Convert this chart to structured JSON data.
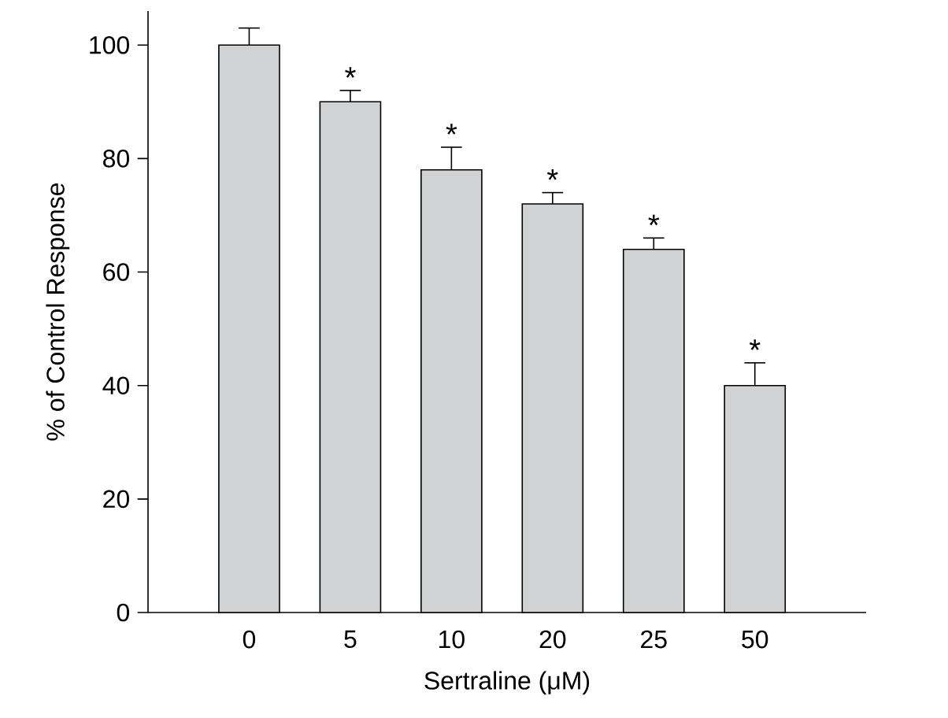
{
  "chart_data": {
    "type": "bar",
    "xlabel": "Sertraline (μM)",
    "ylabel": "% of Control Response",
    "categories": [
      "0",
      "5",
      "10",
      "20",
      "25",
      "50"
    ],
    "values": [
      100,
      90,
      78,
      72,
      64,
      40
    ],
    "errors": [
      3,
      2,
      4,
      2,
      2,
      4
    ],
    "value_labels": [
      null,
      "*",
      "*",
      "*",
      "*",
      "*"
    ],
    "color": "#d1d2d4",
    "ylim": [
      0,
      106
    ],
    "yticks": [
      0,
      20,
      40,
      60,
      80,
      100
    ],
    "grid": false
  }
}
